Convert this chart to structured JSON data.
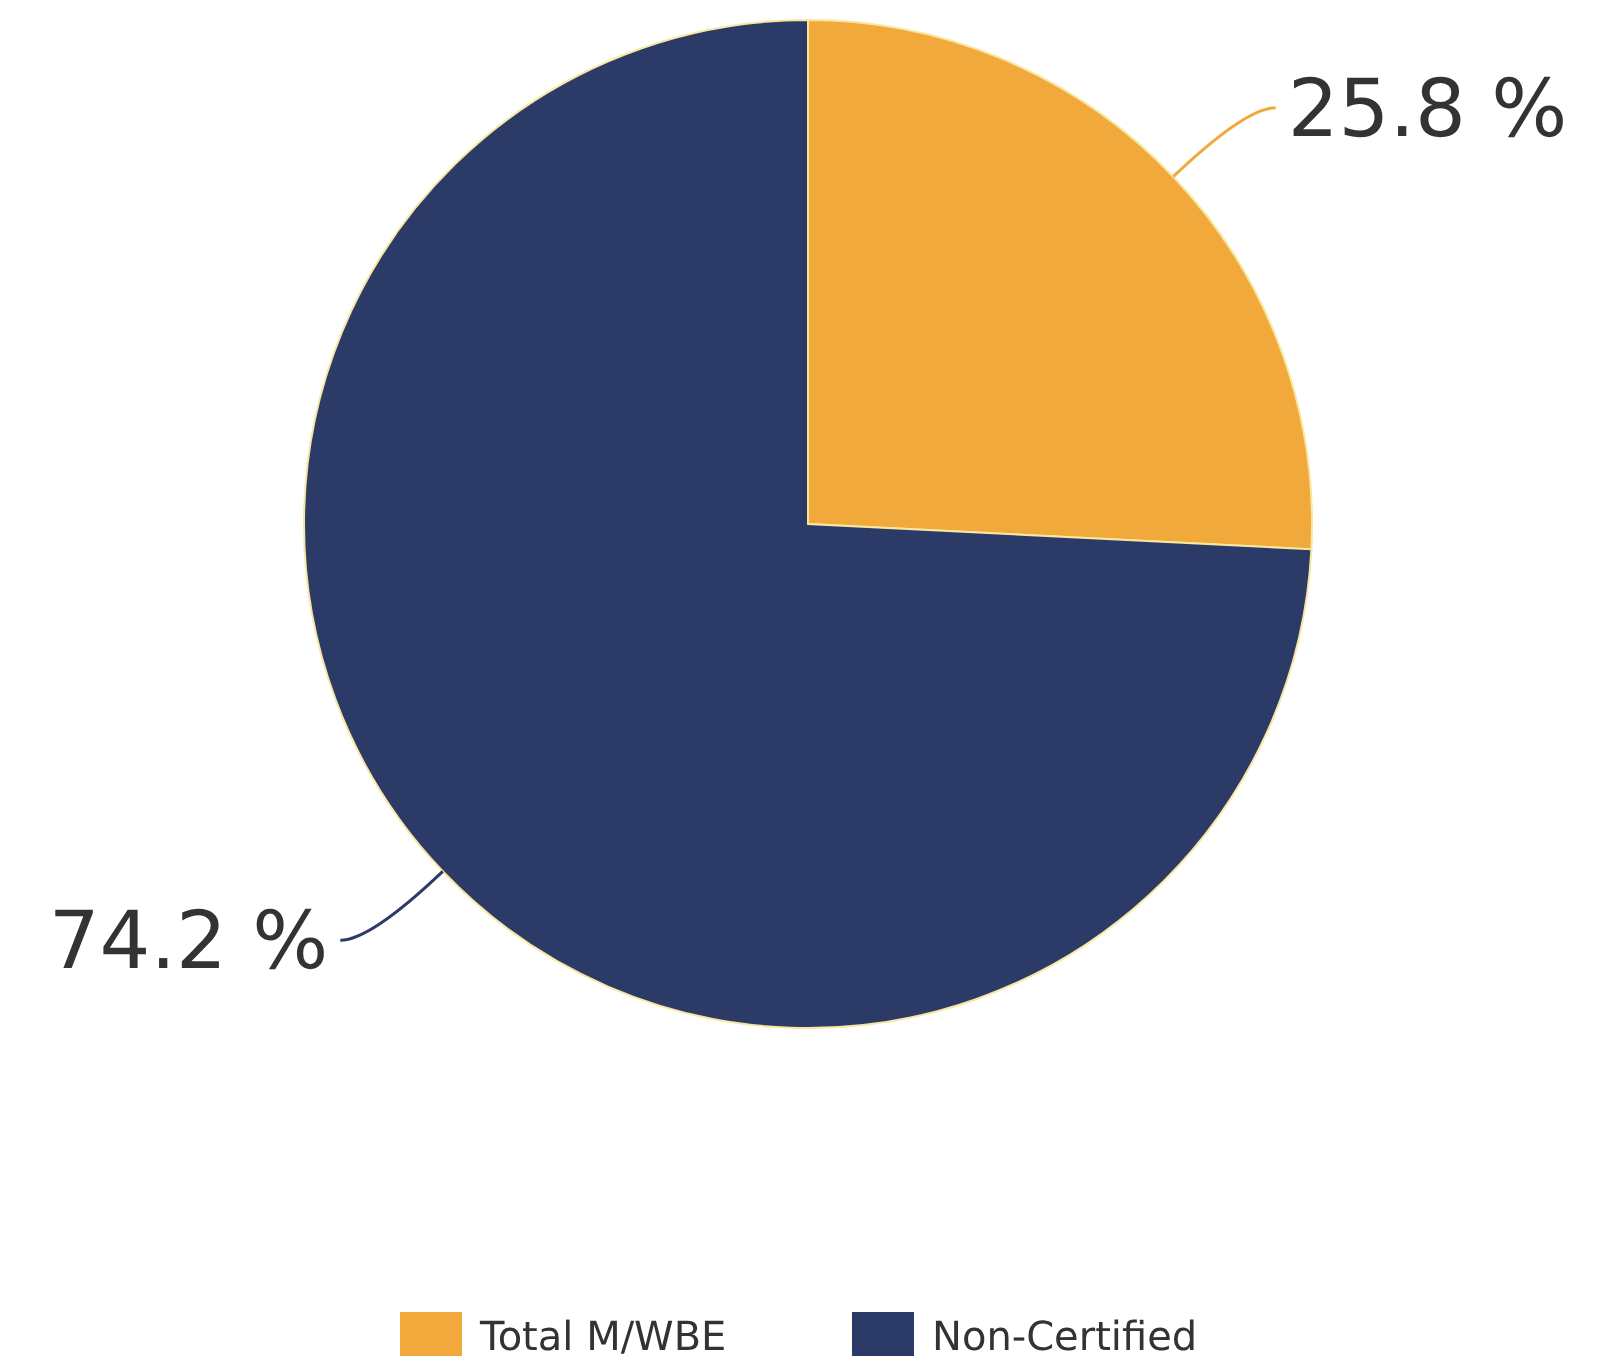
{
  "chart_data": {
    "type": "pie",
    "categories": [
      "Total M/WBE",
      "Non-Certified"
    ],
    "values": [
      25.8,
      74.2
    ],
    "colors": [
      "#f2a93b",
      "#2b3a67"
    ],
    "value_labels": [
      "25.8 %",
      "74.2 %"
    ],
    "legend": "bottom"
  }
}
